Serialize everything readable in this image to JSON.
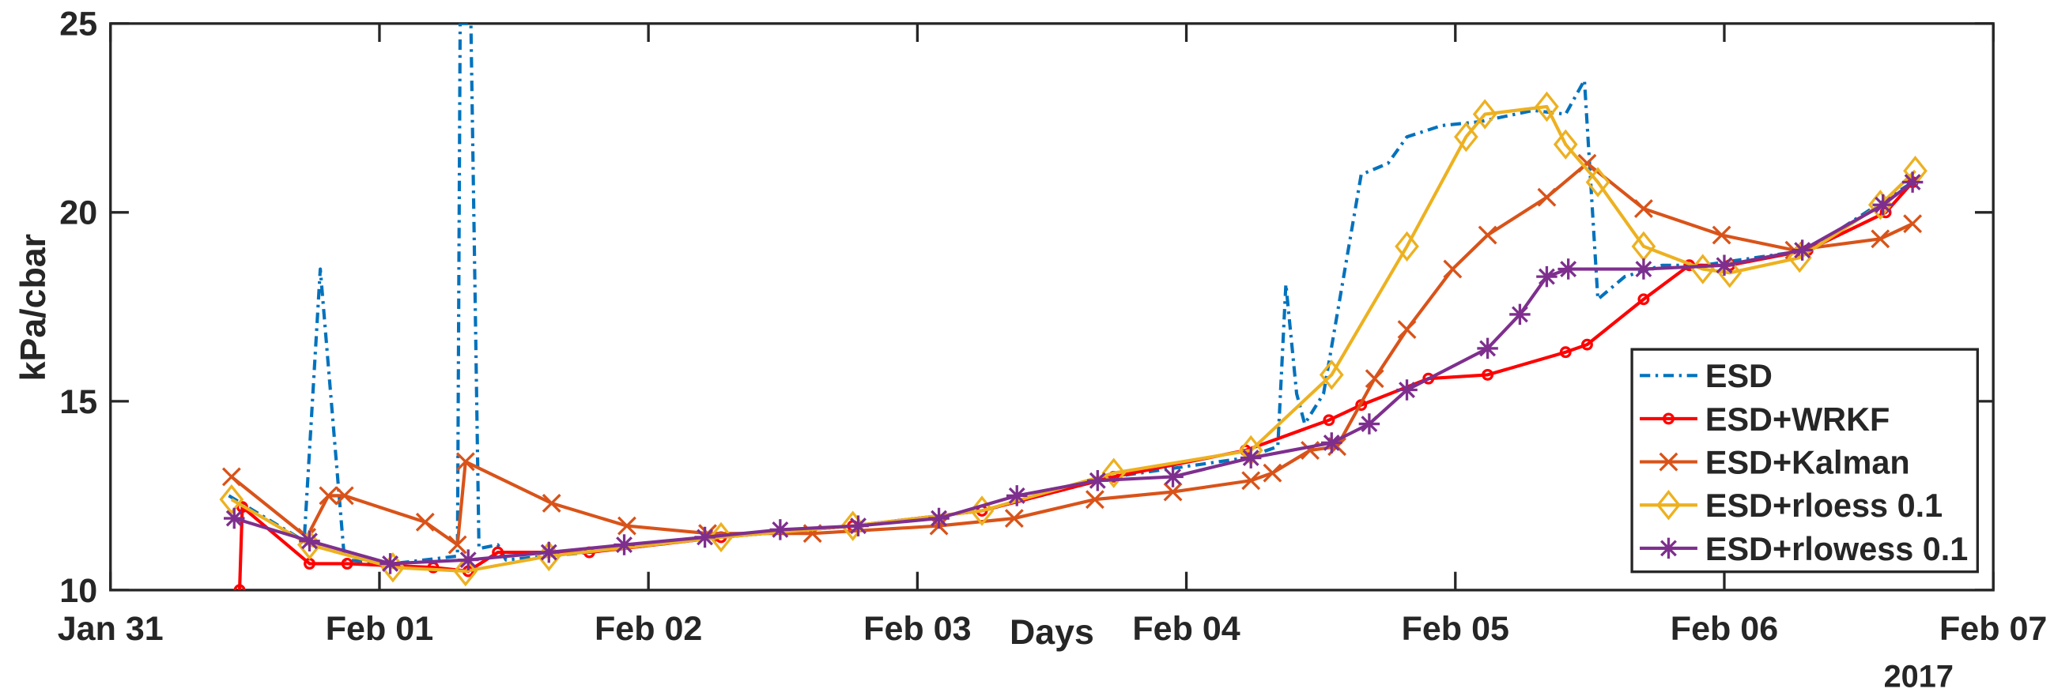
{
  "chart_data": {
    "type": "line",
    "xlabel": "Days",
    "ylabel": "kPa/cbar",
    "annotation": "2017",
    "xlim": [
      0,
      7
    ],
    "ylim": [
      10,
      25
    ],
    "xticks": [
      {
        "value": 0,
        "label": "Jan 31"
      },
      {
        "value": 1,
        "label": "Feb 01"
      },
      {
        "value": 2,
        "label": "Feb 02"
      },
      {
        "value": 3,
        "label": "Feb 03"
      },
      {
        "value": 4,
        "label": "Feb 04"
      },
      {
        "value": 5,
        "label": "Feb 05"
      },
      {
        "value": 6,
        "label": "Feb 06"
      },
      {
        "value": 7,
        "label": "Feb 07"
      }
    ],
    "yticks": [
      10,
      15,
      20,
      25
    ],
    "grid": false,
    "legend": "lower right",
    "series": [
      {
        "name": "ESD",
        "color": "#0072bd",
        "dash": "dashdot",
        "marker": "none",
        "x": [
          0.44,
          0.72,
          0.78,
          0.87,
          1.05,
          1.29,
          1.3,
          1.34,
          1.37,
          1.44,
          1.47,
          1.78,
          2.27,
          2.76,
          3.24,
          3.73,
          4.22,
          4.34,
          4.37,
          4.41,
          4.44,
          4.51,
          4.65,
          4.75,
          4.82,
          4.95,
          5.09,
          5.29,
          5.41,
          5.48,
          5.53,
          5.63,
          5.77,
          5.92,
          6.31,
          6.7
        ],
        "values": [
          12.5,
          11.3,
          18.5,
          10.8,
          10.7,
          10.9,
          25,
          25,
          11.1,
          11.2,
          10.8,
          11.0,
          11.4,
          11.7,
          12.1,
          13.0,
          13.5,
          13.8,
          18.1,
          15.2,
          14.4,
          15.2,
          21.0,
          21.3,
          22.0,
          22.3,
          22.4,
          22.7,
          22.6,
          23.5,
          17.7,
          18.3,
          18.6,
          18.6,
          19.0,
          20.8
        ]
      },
      {
        "name": "ESD+WRKF",
        "color": "#ff0000",
        "dash": "solid",
        "marker": "circle",
        "x": [
          0.48,
          0.49,
          0.74,
          0.88,
          1.2,
          1.33,
          1.44,
          1.78,
          2.27,
          2.76,
          3.24,
          3.73,
          4.22,
          4.53,
          4.65,
          4.9,
          5.12,
          5.41,
          5.49,
          5.7,
          5.87,
          6.02,
          6.31,
          6.6,
          6.7
        ],
        "values": [
          10,
          12.2,
          10.7,
          10.7,
          10.6,
          10.5,
          11.0,
          11.0,
          11.4,
          11.7,
          12.1,
          13.0,
          13.7,
          14.5,
          14.9,
          15.6,
          15.7,
          16.3,
          16.5,
          17.7,
          18.6,
          18.6,
          19.0,
          20.0,
          20.8
        ]
      },
      {
        "name": "ESD+Kalman",
        "color": "#d95319",
        "dash": "solid",
        "marker": "x",
        "x": [
          0.45,
          0.73,
          0.81,
          0.87,
          1.17,
          1.29,
          1.32,
          1.64,
          1.92,
          2.22,
          2.61,
          3.08,
          3.36,
          3.66,
          3.95,
          4.24,
          4.32,
          4.46,
          4.56,
          4.7,
          4.82,
          4.99,
          5.12,
          5.34,
          5.49,
          5.7,
          5.99,
          6.26,
          6.58,
          6.7
        ],
        "values": [
          13.0,
          11.4,
          12.5,
          12.5,
          11.8,
          11.2,
          13.4,
          12.3,
          11.7,
          11.5,
          11.5,
          11.7,
          11.9,
          12.4,
          12.6,
          12.9,
          13.1,
          13.7,
          13.8,
          15.6,
          16.9,
          18.5,
          19.4,
          20.4,
          21.3,
          20.1,
          19.4,
          19.0,
          19.3,
          19.7
        ]
      },
      {
        "name": "ESD+rloess 0.1",
        "color": "#edb120",
        "dash": "solid",
        "marker": "diamond",
        "x": [
          0.45,
          0.74,
          1.05,
          1.32,
          1.63,
          2.27,
          2.76,
          3.24,
          3.73,
          4.24,
          4.54,
          4.82,
          5.04,
          5.11,
          5.34,
          5.41,
          5.53,
          5.7,
          5.92,
          6.02,
          6.28,
          6.58,
          6.71
        ],
        "values": [
          12.4,
          11.2,
          10.6,
          10.5,
          10.9,
          11.4,
          11.7,
          12.1,
          13.1,
          13.7,
          15.7,
          19.1,
          22.0,
          22.6,
          22.8,
          21.8,
          20.8,
          19.1,
          18.5,
          18.4,
          18.8,
          20.2,
          21.1
        ]
      },
      {
        "name": "ESD+rlowess 0.1",
        "color": "#7e2f8e",
        "dash": "solid",
        "marker": "star",
        "x": [
          0.46,
          0.74,
          1.04,
          1.33,
          1.63,
          1.91,
          2.21,
          2.49,
          2.78,
          3.08,
          3.37,
          3.67,
          3.95,
          4.24,
          4.54,
          4.68,
          4.82,
          5.12,
          5.24,
          5.34,
          5.42,
          5.7,
          6.0,
          6.29,
          6.59,
          6.7
        ],
        "values": [
          11.9,
          11.3,
          10.7,
          10.8,
          11.0,
          11.2,
          11.4,
          11.6,
          11.7,
          11.9,
          12.5,
          12.9,
          13.0,
          13.5,
          13.9,
          14.4,
          15.3,
          16.4,
          17.3,
          18.3,
          18.5,
          18.5,
          18.6,
          19.0,
          20.2,
          20.8
        ]
      }
    ]
  }
}
